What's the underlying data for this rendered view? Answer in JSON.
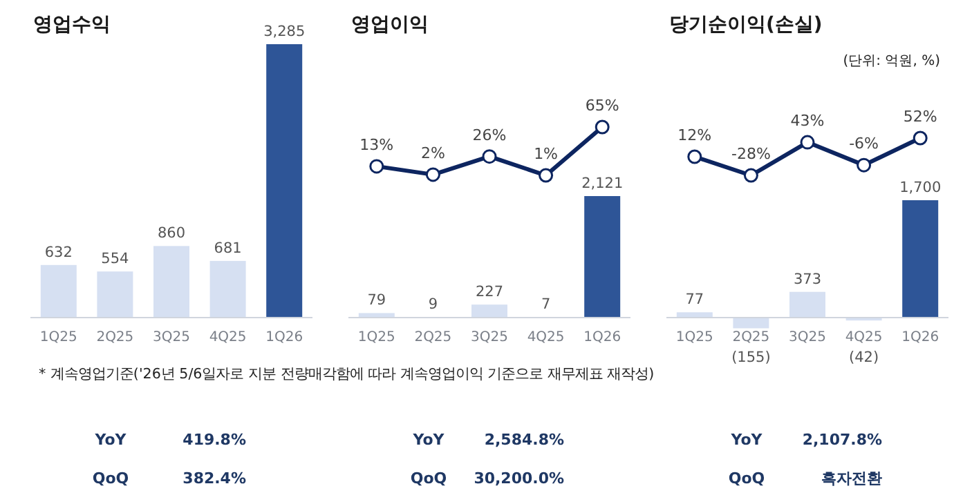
{
  "chart_data": [
    {
      "type": "bar",
      "title": "영업수익",
      "categories": [
        "1Q25",
        "2Q25",
        "3Q25",
        "4Q25",
        "1Q26"
      ],
      "series": [
        {
          "values": [
            632,
            554,
            860,
            681,
            3285
          ],
          "colors": [
            "#d6e0f2",
            "#d6e0f2",
            "#d6e0f2",
            "#d6e0f2",
            "#2e5597"
          ],
          "value_labels": [
            "632",
            "554",
            "860",
            "681",
            "3,285"
          ]
        }
      ],
      "annotations": [
        "* 계속영업기준('26년 5/6일자로 지분 전량매각함에 따라 계속영업이익 기준으로 재무제표 재작성)",
        "YoY",
        "419.8%",
        "QoQ",
        "382.4%"
      ]
    },
    {
      "type": "line",
      "title": "영업이익",
      "categories": [
        null,
        null,
        null,
        null,
        null
      ],
      "series": [
        {
          "color": "#0d2560",
          "marker": "circle",
          "values": [
            13,
            2,
            26,
            1,
            65
          ],
          "value_labels": [
            "13%",
            "2%",
            "26%",
            "1%",
            "65%"
          ]
        }
      ]
    },
    {
      "type": "bar",
      "categories": [
        "1Q25",
        "2Q25",
        "3Q25",
        "4Q25",
        "1Q26"
      ],
      "series": [
        {
          "values": [
            79,
            9,
            227,
            7,
            2121
          ],
          "colors": [
            "#d6e0f2",
            "#d6e0f2",
            "#d6e0f2",
            "#d6e0f2",
            "#2e5597"
          ],
          "value_labels": [
            "79",
            "9",
            "227",
            "7",
            "2,121"
          ]
        }
      ],
      "annotations": [
        "YoY",
        "2,584.8%",
        "QoQ",
        "30,200.0%"
      ]
    },
    {
      "type": "line",
      "title": "당기순이익(손실)",
      "categories": [
        null,
        null,
        null,
        null,
        null
      ],
      "series": [
        {
          "color": "#0d2560",
          "marker": "circle",
          "values": [
            12,
            -28,
            43,
            -6,
            52
          ],
          "value_labels": [
            "12%",
            "-28%",
            "43%",
            "-6%",
            "52%"
          ]
        }
      ]
    },
    {
      "type": "bar",
      "categories": [
        "1Q25",
        "2Q25",
        "3Q25",
        "4Q25",
        "1Q26"
      ],
      "series": [
        {
          "values": [
            77,
            -155,
            373,
            -42,
            1700
          ],
          "colors": [
            "#d6e0f2",
            "#d6e0f2",
            "#d6e0f2",
            "#d6e0f2",
            "#2e5597"
          ],
          "value_labels": [
            "77",
            "(155)",
            "373",
            "(42)",
            "1,700"
          ]
        }
      ],
      "annotations": [
        "(단위: 억원, %)",
        "YoY",
        "2,107.8%",
        "QoQ",
        "흑자전환"
      ]
    }
  ]
}
